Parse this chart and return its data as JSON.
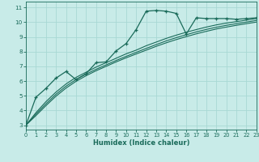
{
  "title": "",
  "xlabel": "Humidex (Indice chaleur)",
  "ylabel": "",
  "bg_color": "#c8ebe8",
  "grid_color": "#a8d8d4",
  "line_color": "#1a6b5a",
  "xlim": [
    0,
    23
  ],
  "ylim": [
    2.7,
    11.4
  ],
  "xticks": [
    0,
    1,
    2,
    3,
    4,
    5,
    6,
    7,
    8,
    9,
    10,
    11,
    12,
    13,
    14,
    15,
    16,
    17,
    18,
    19,
    20,
    21,
    22,
    23
  ],
  "yticks": [
    3,
    4,
    5,
    6,
    7,
    8,
    9,
    10,
    11
  ],
  "main_x": [
    0,
    1,
    2,
    3,
    4,
    5,
    6,
    7,
    8,
    9,
    10,
    11,
    12,
    13,
    14,
    15,
    16,
    17,
    18,
    19,
    20,
    21,
    22,
    23
  ],
  "main_y": [
    3.0,
    4.9,
    5.5,
    6.2,
    6.65,
    6.1,
    6.5,
    7.25,
    7.3,
    8.05,
    8.55,
    9.5,
    10.75,
    10.8,
    10.75,
    10.6,
    9.2,
    10.3,
    10.25,
    10.25,
    10.25,
    10.2,
    10.25,
    10.3
  ],
  "line2_x": [
    0,
    1,
    2,
    3,
    4,
    5,
    6,
    7,
    8,
    9,
    10,
    11,
    12,
    13,
    14,
    15,
    16,
    17,
    18,
    19,
    20,
    21,
    22,
    23
  ],
  "line2_y": [
    3.0,
    3.85,
    4.6,
    5.25,
    5.8,
    6.25,
    6.6,
    6.95,
    7.25,
    7.55,
    7.85,
    8.1,
    8.4,
    8.65,
    8.9,
    9.12,
    9.32,
    9.5,
    9.67,
    9.82,
    9.94,
    10.04,
    10.14,
    10.25
  ],
  "line3_x": [
    0,
    1,
    2,
    3,
    4,
    5,
    6,
    7,
    8,
    9,
    10,
    11,
    12,
    13,
    14,
    15,
    16,
    17,
    18,
    19,
    20,
    21,
    22,
    23
  ],
  "line3_y": [
    3.0,
    3.75,
    4.45,
    5.1,
    5.65,
    6.1,
    6.47,
    6.8,
    7.1,
    7.4,
    7.68,
    7.95,
    8.22,
    8.48,
    8.73,
    8.95,
    9.15,
    9.34,
    9.51,
    9.66,
    9.79,
    9.9,
    10.01,
    10.12
  ],
  "line4_x": [
    0,
    1,
    2,
    3,
    4,
    5,
    6,
    7,
    8,
    9,
    10,
    11,
    12,
    13,
    14,
    15,
    16,
    17,
    18,
    19,
    20,
    21,
    22,
    23
  ],
  "line4_y": [
    3.0,
    3.65,
    4.33,
    4.97,
    5.52,
    5.98,
    6.36,
    6.7,
    7.0,
    7.3,
    7.58,
    7.84,
    8.1,
    8.36,
    8.6,
    8.82,
    9.02,
    9.21,
    9.38,
    9.54,
    9.67,
    9.79,
    9.9,
    10.01
  ]
}
